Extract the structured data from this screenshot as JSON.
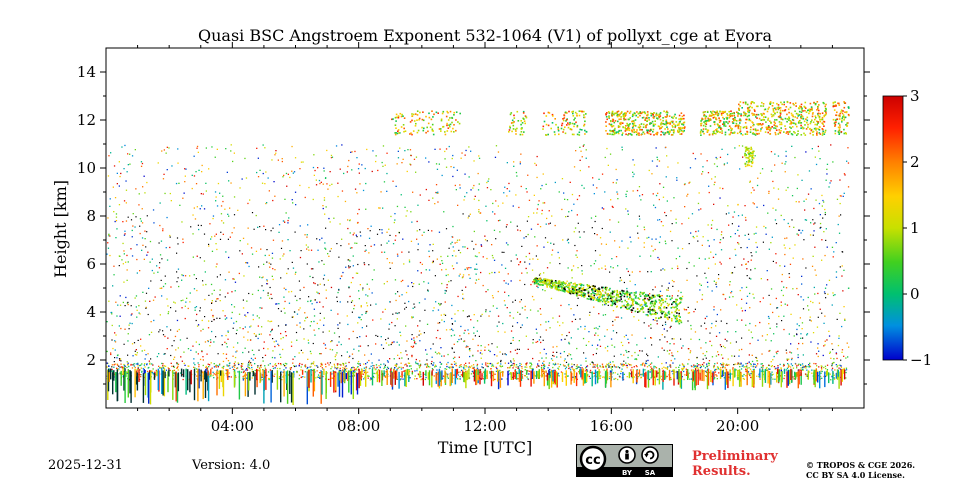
{
  "chart_data": {
    "type": "heatmap",
    "title": "Quasi BSC Angstroem Exponent 532-1064 (V1) of pollyxt_cge at Evora",
    "xlabel": "Time [UTC]",
    "ylabel": "Height [km]",
    "xlim": [
      0,
      24
    ],
    "ylim": [
      0,
      15
    ],
    "x_tick_values": [
      4,
      8,
      12,
      16,
      20
    ],
    "x_tick_labels": [
      "04:00",
      "08:00",
      "12:00",
      "16:00",
      "20:00"
    ],
    "y_tick_values": [
      2,
      4,
      6,
      8,
      10,
      12,
      14
    ],
    "y_tick_labels": [
      "2",
      "4",
      "6",
      "8",
      "10",
      "12",
      "14"
    ],
    "colorbar": {
      "range": [
        -1,
        3
      ],
      "tick_values": [
        -1,
        0,
        1,
        2,
        3
      ],
      "tick_labels": [
        "−1",
        "0",
        "1",
        "2",
        "3"
      ],
      "colormap": [
        "#0000cc",
        "#0090e0",
        "#00c070",
        "#40d020",
        "#c8e000",
        "#ffd000",
        "#ff8000",
        "#ff2000",
        "#cc0000"
      ]
    },
    "features": [
      {
        "name": "boundary layer",
        "time_range": [
          0,
          23.5
        ],
        "height_range": [
          0,
          1.7
        ],
        "angstrom_range": [
          -1,
          3
        ]
      },
      {
        "name": "noise scatter",
        "time_range": [
          0,
          23.5
        ],
        "height_range": [
          1.7,
          11
        ],
        "angstrom_range": [
          -1,
          3
        ]
      },
      {
        "name": "aerosol layer",
        "time_range": [
          13.5,
          18.2
        ],
        "height_range": [
          3.6,
          5.4
        ],
        "angstrom_range": [
          0,
          1.5
        ]
      },
      {
        "name": "cirrus cloud",
        "time_range": [
          9.0,
          23.5
        ],
        "height_range": [
          11.3,
          12.9
        ],
        "angstrom_range": [
          0,
          2.5
        ]
      },
      {
        "name": "small cloud",
        "time_range": [
          20.2,
          20.5
        ],
        "height_range": [
          10.1,
          10.9
        ],
        "angstrom_range": [
          0.5,
          1.5
        ]
      }
    ]
  },
  "footer": {
    "date": "2025-12-31",
    "version": "Version: 4.0",
    "cc_label": "cc",
    "by_label": "BY",
    "sa_label": "SA",
    "preliminary_line1": "Preliminary",
    "preliminary_line2": "Results.",
    "license_line1": "© TROPOS & CGE 2026.",
    "license_line2": "CC BY SA 4.0 License."
  }
}
